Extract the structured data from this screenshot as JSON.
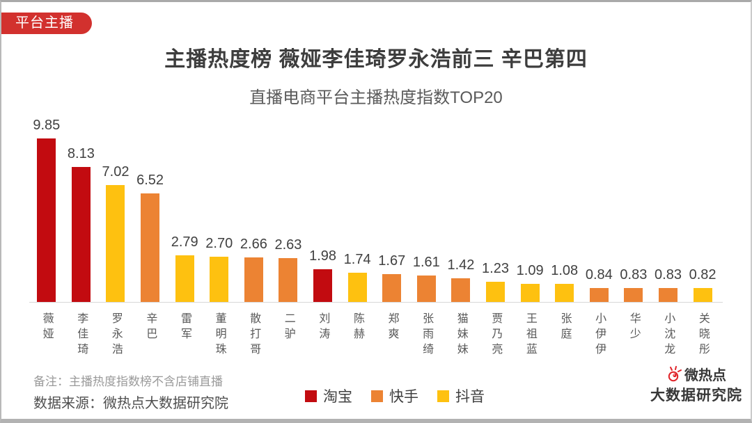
{
  "badge": {
    "label": "平台主播",
    "color": "#d2312e"
  },
  "header": {
    "title": "主播热度榜 薇娅李佳琦罗永浩前三 辛巴第四",
    "subtitle": "直播电商平台主播热度指数TOP20"
  },
  "chart_data": {
    "type": "bar",
    "title": "直播电商平台主播热度指数TOP20",
    "categories": [
      "薇娅",
      "李佳琦",
      "罗永浩",
      "辛巴",
      "雷军",
      "董明珠",
      "散打哥",
      "二驴",
      "刘涛",
      "陈赫",
      "郑爽",
      "张雨绮",
      "猫妹妹",
      "贾乃亮",
      "王祖蓝",
      "张庭",
      "小伊伊",
      "华少",
      "小沈龙",
      "关晓彤"
    ],
    "values": [
      9.85,
      8.13,
      7.02,
      6.52,
      2.79,
      2.7,
      2.66,
      2.63,
      1.98,
      1.74,
      1.67,
      1.61,
      1.42,
      1.23,
      1.09,
      1.08,
      0.84,
      0.83,
      0.83,
      0.82
    ],
    "values_display": [
      "9.85",
      "8.13",
      "7.02",
      "6.52",
      "2.79",
      "2.70",
      "2.66",
      "2.63",
      "1.98",
      "1.74",
      "1.67",
      "1.61",
      "1.42",
      "1.23",
      "1.09",
      "1.08",
      "0.84",
      "0.83",
      "0.83",
      "0.82"
    ],
    "platforms": [
      "taobao",
      "taobao",
      "douyin",
      "kuaishou",
      "douyin",
      "douyin",
      "kuaishou",
      "kuaishou",
      "taobao",
      "douyin",
      "kuaishou",
      "kuaishou",
      "kuaishou",
      "douyin",
      "douyin",
      "douyin",
      "kuaishou",
      "kuaishou",
      "kuaishou",
      "douyin"
    ],
    "colors": {
      "taobao": "#c20b10",
      "kuaishou": "#ec8333",
      "douyin": "#fec110"
    },
    "legend": [
      {
        "label": "淘宝",
        "color": "#c20b10"
      },
      {
        "label": "快手",
        "color": "#ec8333"
      },
      {
        "label": "抖音",
        "color": "#fec110"
      }
    ],
    "legend_position": "bottom",
    "grid": false,
    "ylim": [
      0,
      10
    ],
    "xlabel": "",
    "ylabel": ""
  },
  "footer": {
    "note": "备注：主播热度指数榜不含店铺直播",
    "source": "数据来源：微热点大数据研究院"
  },
  "logo": {
    "line1": "微热点",
    "line2": "大数据研究院",
    "icon_color": "#e0242a"
  }
}
